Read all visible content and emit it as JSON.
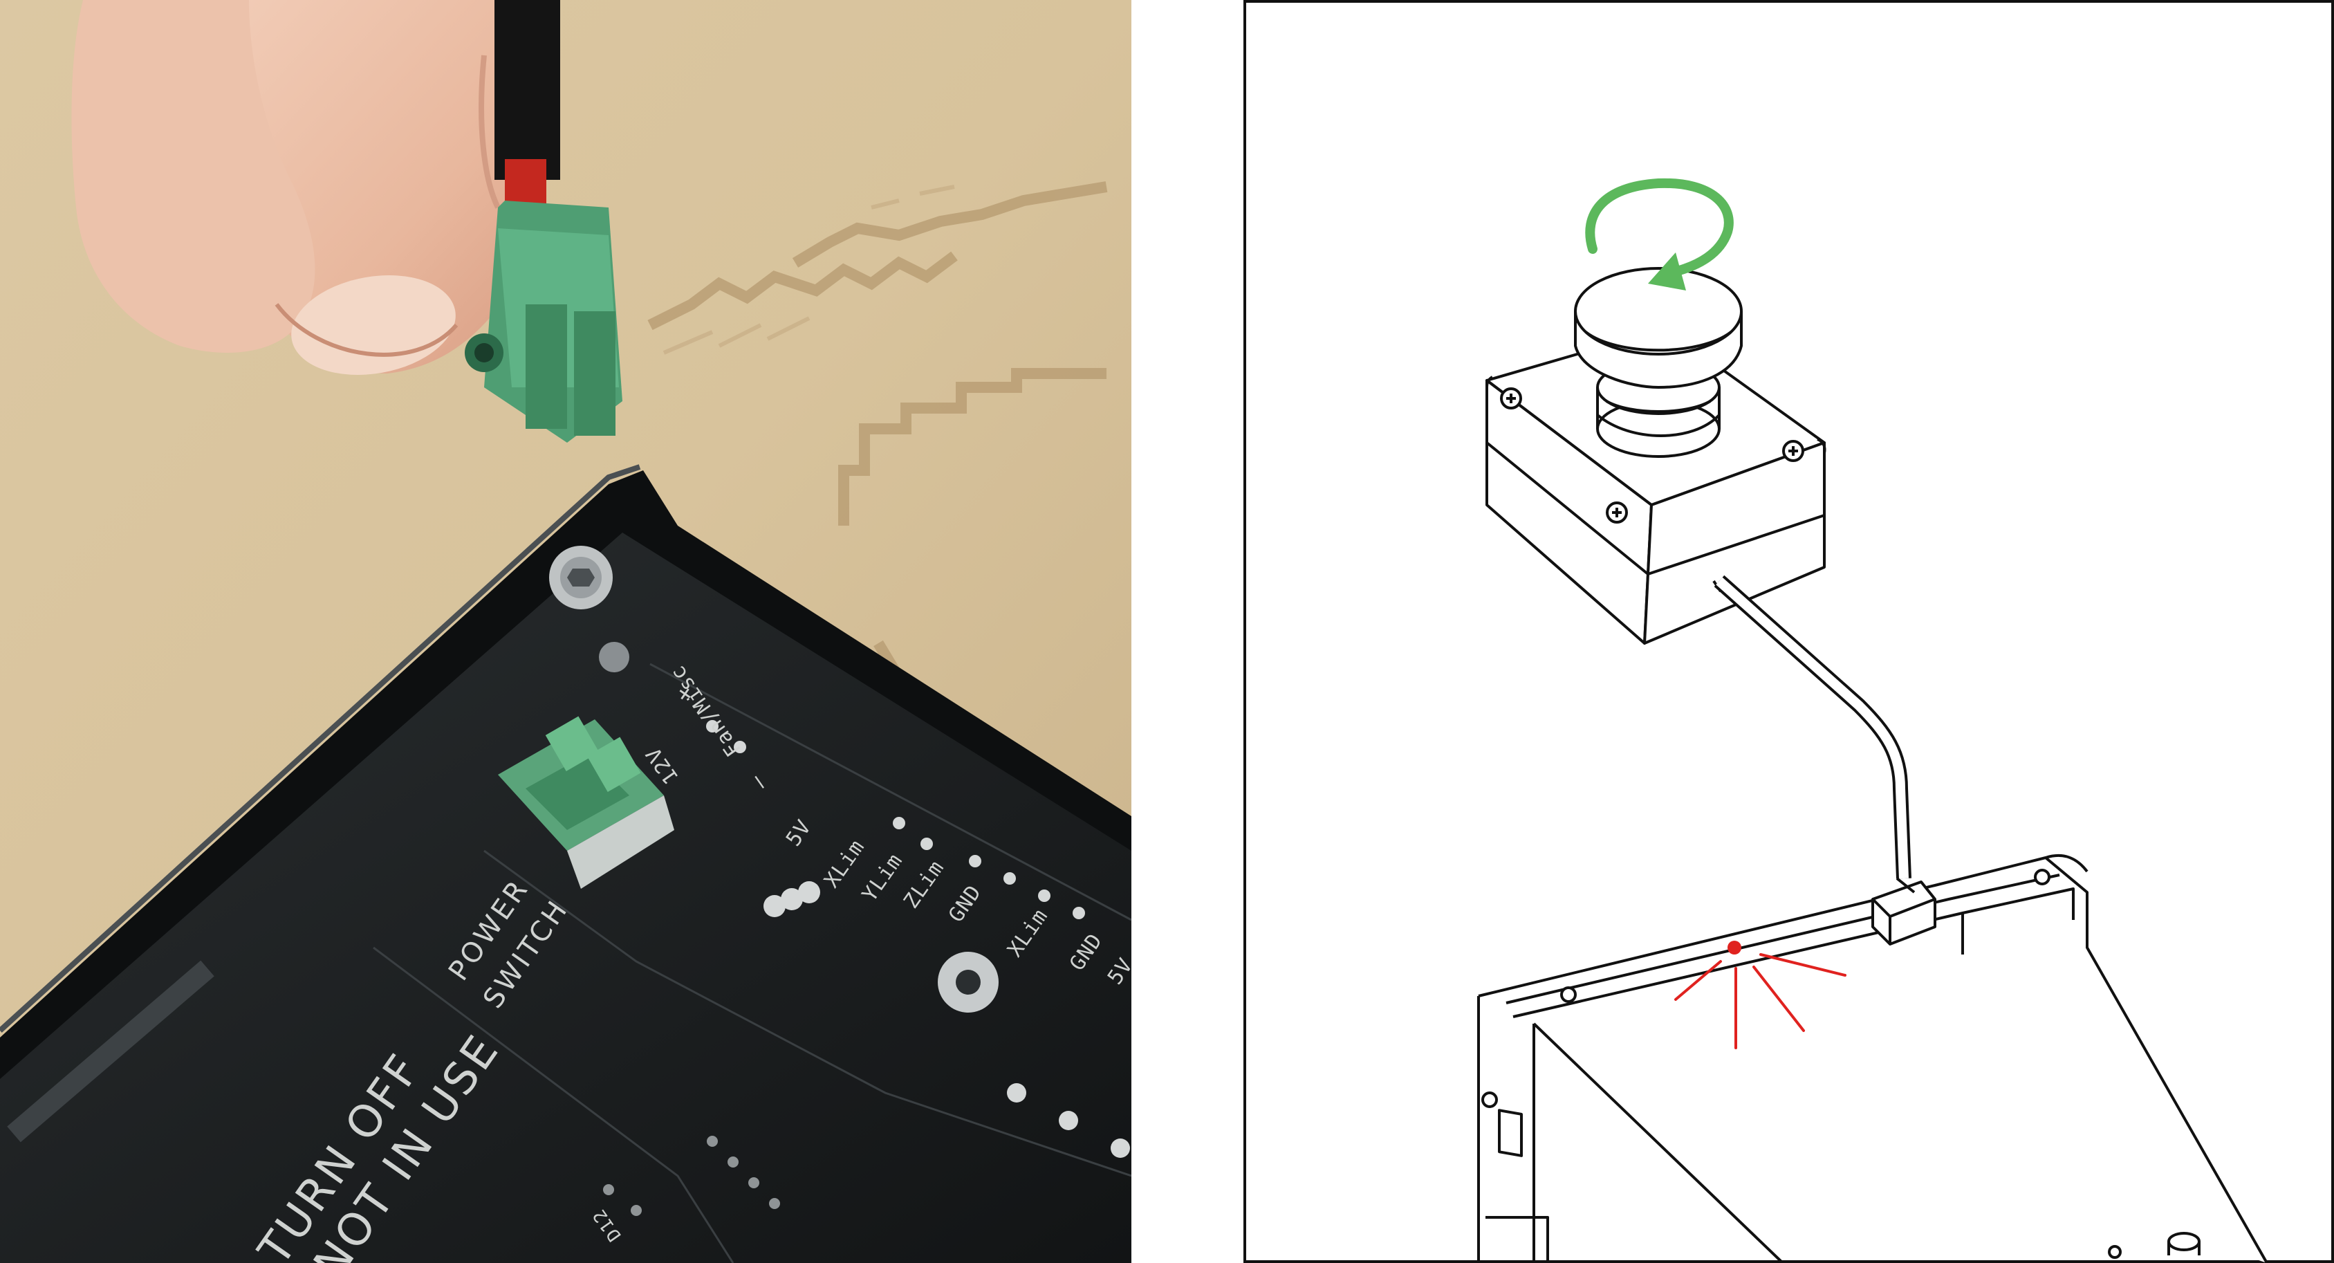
{
  "photo": {
    "board_labels": {
      "power_switch_line1": "POWER",
      "power_switch_line2": "SWITCH",
      "warning_line1": "TURN OFF",
      "warning_line2": "NOT IN USE",
      "voltage": "12V",
      "fan_misc": "Fan/Misc",
      "plus": "+",
      "minus": "–",
      "five_v_a": "5V",
      "xlim_a": "XLim",
      "ylim": "YLim",
      "zlim": "ZLim",
      "gnd_a": "GND",
      "xlim_b": "XLim",
      "gnd_b": "GND",
      "five_v_b": "5V",
      "pin_id": "D12"
    }
  },
  "diagram": {
    "rotate_arrow_color": "#5cb85c",
    "indicator_color": "#e0221f",
    "line_color": "#111111"
  }
}
